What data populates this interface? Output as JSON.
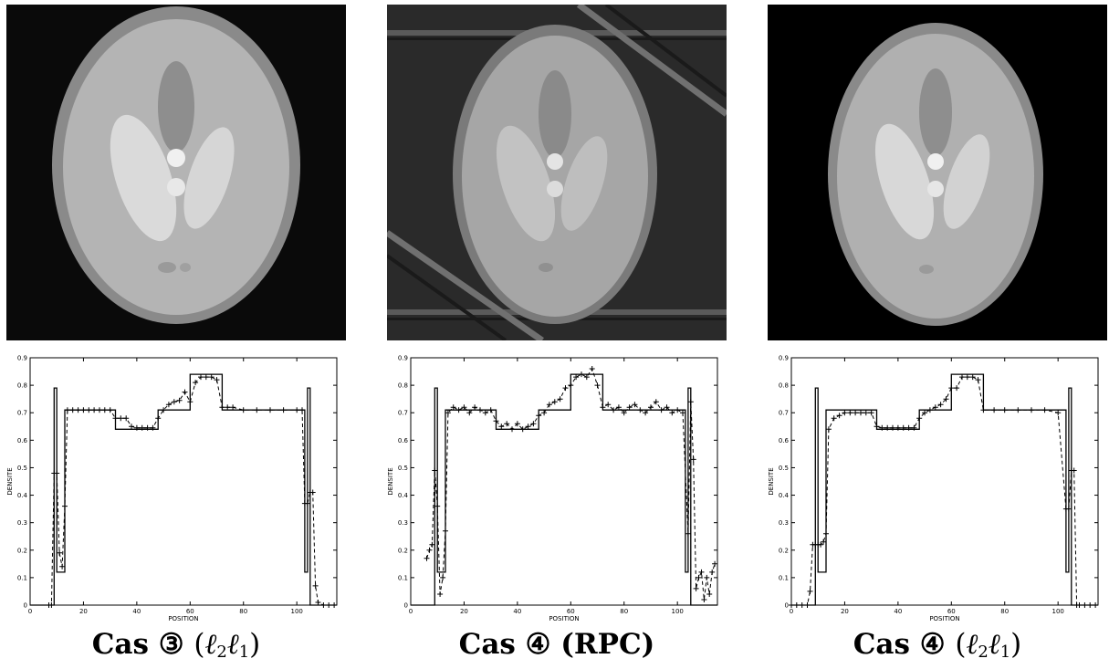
{
  "figure": {
    "panels": [
      {
        "id": "cas3-l2l1",
        "caption": {
          "prefix": "Cas",
          "circled": "③",
          "paren_open": "(",
          "l2": "ℓ",
          "sub2": "2",
          "l1": "ℓ",
          "sub1": "1",
          "paren_close": ")"
        },
        "image": {
          "background": "#0a0a0a",
          "artifacts": "none"
        }
      },
      {
        "id": "cas4-rpc",
        "caption": {
          "prefix": "Cas",
          "circled": "④",
          "method": "(RPC)"
        },
        "image": {
          "background": "#2a2a2a",
          "artifacts": "streaks"
        }
      },
      {
        "id": "cas4-l2l1",
        "caption": {
          "prefix": "Cas",
          "circled": "④",
          "paren_open": "(",
          "l2": "ℓ",
          "sub2": "2",
          "l1": "ℓ",
          "sub1": "1",
          "paren_close": ")"
        },
        "image": {
          "background": "#000000",
          "artifacts": "none"
        }
      }
    ]
  },
  "chart_data": [
    {
      "type": "line",
      "xlabel": "POSITION",
      "ylabel": "DENSITE",
      "xlim": [
        0,
        115
      ],
      "ylim": [
        0,
        0.9
      ],
      "xticks": [
        0,
        20,
        40,
        60,
        80,
        100
      ],
      "yticks": [
        0,
        0.1,
        0.2,
        0.3,
        0.4,
        0.5,
        0.6,
        0.7,
        0.8,
        0.9
      ],
      "series": [
        {
          "style": "solid",
          "x": [
            0,
            9,
            9,
            10,
            10,
            11,
            11,
            12,
            12,
            13,
            13,
            32,
            32,
            48,
            48,
            60,
            60,
            72,
            72,
            103,
            103,
            104,
            104,
            105,
            105,
            106,
            106,
            115
          ],
          "y": [
            0,
            0,
            0.79,
            0.79,
            0.12,
            0.12,
            0.12,
            0.12,
            0.12,
            0.12,
            0.71,
            0.71,
            0.64,
            0.64,
            0.71,
            0.71,
            0.84,
            0.84,
            0.71,
            0.71,
            0.12,
            0.12,
            0.79,
            0.79,
            0,
            0,
            0,
            0
          ]
        },
        {
          "style": "dashed-plus",
          "x": [
            7,
            8,
            9,
            10,
            11,
            12,
            13,
            14,
            16,
            18,
            20,
            22,
            24,
            26,
            28,
            30,
            32,
            34,
            36,
            38,
            40,
            42,
            44,
            46,
            48,
            50,
            52,
            54,
            56,
            58,
            60,
            62,
            64,
            66,
            68,
            70,
            72,
            74,
            76,
            80,
            85,
            90,
            95,
            100,
            102,
            103,
            104,
            105,
            106,
            107,
            108,
            110,
            112,
            114
          ],
          "y": [
            0,
            0,
            0.48,
            0.48,
            0.19,
            0.14,
            0.36,
            0.71,
            0.71,
            0.71,
            0.71,
            0.71,
            0.71,
            0.71,
            0.71,
            0.71,
            0.68,
            0.68,
            0.68,
            0.65,
            0.645,
            0.645,
            0.645,
            0.645,
            0.68,
            0.71,
            0.73,
            0.74,
            0.745,
            0.775,
            0.74,
            0.81,
            0.83,
            0.83,
            0.83,
            0.82,
            0.72,
            0.72,
            0.72,
            0.71,
            0.71,
            0.71,
            0.71,
            0.71,
            0.71,
            0.37,
            0.37,
            0.41,
            0.41,
            0.07,
            0.01,
            0,
            0,
            0
          ]
        }
      ]
    },
    {
      "type": "line",
      "xlabel": "POSITION",
      "ylabel": "DENSITE",
      "xlim": [
        0,
        115
      ],
      "ylim": [
        0,
        0.9
      ],
      "xticks": [
        0,
        20,
        40,
        60,
        80,
        100
      ],
      "yticks": [
        0,
        0.1,
        0.2,
        0.3,
        0.4,
        0.5,
        0.6,
        0.7,
        0.8,
        0.9
      ],
      "series": [
        {
          "style": "solid",
          "x": [
            0,
            9,
            9,
            10,
            10,
            11,
            11,
            12,
            12,
            13,
            13,
            32,
            32,
            48,
            48,
            60,
            60,
            72,
            72,
            103,
            103,
            104,
            104,
            105,
            105,
            106,
            106,
            115
          ],
          "y": [
            0,
            0,
            0.79,
            0.79,
            0.12,
            0.12,
            0.12,
            0.12,
            0.12,
            0.12,
            0.71,
            0.71,
            0.64,
            0.64,
            0.71,
            0.71,
            0.84,
            0.84,
            0.71,
            0.71,
            0.12,
            0.12,
            0.79,
            0.79,
            0,
            0,
            0,
            0
          ]
        },
        {
          "style": "dashed-plus",
          "x": [
            6,
            7,
            8,
            9,
            10,
            11,
            12,
            13,
            14,
            16,
            18,
            20,
            22,
            24,
            26,
            28,
            30,
            32,
            34,
            36,
            38,
            40,
            42,
            44,
            46,
            48,
            50,
            52,
            54,
            56,
            58,
            60,
            62,
            64,
            66,
            68,
            70,
            72,
            74,
            76,
            78,
            80,
            82,
            84,
            86,
            88,
            90,
            92,
            94,
            96,
            98,
            100,
            102,
            104,
            105,
            106,
            107,
            108,
            109,
            110,
            111,
            112,
            113,
            114
          ],
          "y": [
            0.17,
            0.2,
            0.22,
            0.49,
            0.36,
            0.04,
            0.1,
            0.27,
            0.7,
            0.72,
            0.71,
            0.72,
            0.7,
            0.72,
            0.71,
            0.7,
            0.71,
            0.67,
            0.65,
            0.66,
            0.64,
            0.66,
            0.64,
            0.65,
            0.66,
            0.69,
            0.7,
            0.73,
            0.74,
            0.75,
            0.79,
            0.8,
            0.83,
            0.84,
            0.83,
            0.86,
            0.8,
            0.72,
            0.73,
            0.71,
            0.72,
            0.7,
            0.72,
            0.73,
            0.71,
            0.7,
            0.72,
            0.74,
            0.71,
            0.72,
            0.7,
            0.71,
            0.7,
            0.26,
            0.74,
            0.53,
            0.06,
            0.1,
            0.12,
            0.02,
            0.1,
            0.04,
            0.12,
            0.15
          ]
        }
      ]
    },
    {
      "type": "line",
      "xlabel": "POSITION",
      "ylabel": "DENSITE",
      "xlim": [
        0,
        115
      ],
      "ylim": [
        0,
        0.9
      ],
      "xticks": [
        0,
        20,
        40,
        60,
        80,
        100
      ],
      "yticks": [
        0,
        0.1,
        0.2,
        0.3,
        0.4,
        0.5,
        0.6,
        0.7,
        0.8,
        0.9
      ],
      "series": [
        {
          "style": "solid",
          "x": [
            0,
            9,
            9,
            10,
            10,
            11,
            11,
            12,
            12,
            13,
            13,
            32,
            32,
            48,
            48,
            60,
            60,
            72,
            72,
            103,
            103,
            104,
            104,
            105,
            105,
            106,
            106,
            115
          ],
          "y": [
            0,
            0,
            0.79,
            0.79,
            0.12,
            0.12,
            0.12,
            0.12,
            0.12,
            0.12,
            0.71,
            0.71,
            0.64,
            0.64,
            0.71,
            0.71,
            0.84,
            0.84,
            0.71,
            0.71,
            0.12,
            0.12,
            0.79,
            0.79,
            0,
            0,
            0,
            0
          ]
        },
        {
          "style": "dashed-plus",
          "x": [
            0,
            2,
            4,
            6,
            7,
            8,
            9,
            10,
            11,
            12,
            13,
            14,
            16,
            18,
            20,
            22,
            24,
            26,
            28,
            30,
            32,
            34,
            36,
            38,
            40,
            42,
            44,
            46,
            48,
            50,
            52,
            54,
            56,
            58,
            60,
            62,
            64,
            66,
            68,
            70,
            72,
            76,
            80,
            85,
            90,
            95,
            100,
            103,
            104,
            105,
            106,
            107,
            108,
            110,
            112,
            114
          ],
          "y": [
            0,
            0,
            0,
            0,
            0.05,
            0.22,
            0.22,
            0.22,
            0.22,
            0.23,
            0.26,
            0.64,
            0.68,
            0.69,
            0.7,
            0.7,
            0.7,
            0.7,
            0.7,
            0.7,
            0.65,
            0.645,
            0.645,
            0.645,
            0.645,
            0.645,
            0.645,
            0.645,
            0.68,
            0.7,
            0.71,
            0.72,
            0.73,
            0.75,
            0.79,
            0.79,
            0.83,
            0.83,
            0.83,
            0.82,
            0.71,
            0.71,
            0.71,
            0.71,
            0.71,
            0.71,
            0.7,
            0.35,
            0.35,
            0.49,
            0.49,
            0,
            0,
            0,
            0,
            0
          ]
        }
      ]
    }
  ]
}
